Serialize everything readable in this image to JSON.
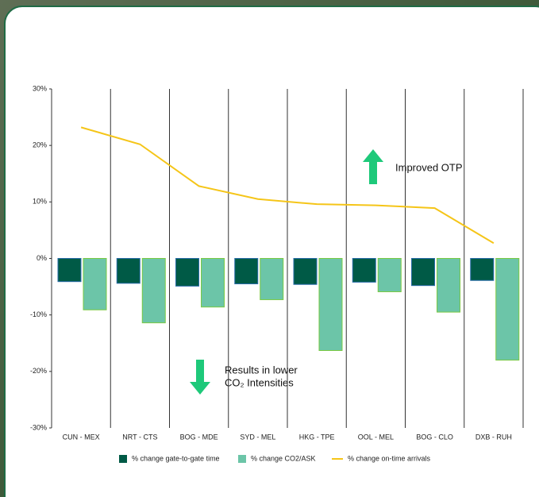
{
  "chart_data": {
    "type": "bar",
    "categories": [
      "CUN - MEX",
      "NRT - CTS",
      "BOG - MDE",
      "SYD - MEL",
      "HKG - TPE",
      "OOL - MEL",
      "BOG - CLO",
      "DXB - RUH"
    ],
    "series": [
      {
        "name": "% change gate-to-gate time",
        "type": "bar",
        "color": "#005a46",
        "values": [
          -4.1,
          -4.4,
          -4.9,
          -4.5,
          -4.6,
          -4.2,
          -4.8,
          -3.9
        ]
      },
      {
        "name": "% change CO2/ASK",
        "type": "bar",
        "color": "#6cc5a8",
        "values": [
          -9.1,
          -11.4,
          -8.6,
          -7.3,
          -16.3,
          -5.9,
          -9.5,
          -18.0
        ]
      },
      {
        "name": "% change on-time arrivals",
        "type": "line",
        "color": "#f5c518",
        "values": [
          23.2,
          20.2,
          12.8,
          10.5,
          9.6,
          9.4,
          8.9,
          2.7
        ]
      }
    ],
    "ylim": [
      -30,
      30
    ],
    "yticks": [
      {
        "value": -30,
        "label": "-30%"
      },
      {
        "value": -20,
        "label": "-20%"
      },
      {
        "value": -10,
        "label": "-10%"
      },
      {
        "value": 0,
        "label": "0%"
      },
      {
        "value": 10,
        "label": "10%"
      },
      {
        "value": 20,
        "label": "20%"
      },
      {
        "value": 30,
        "label": "30%"
      }
    ],
    "grid": false,
    "legend": "bottom",
    "annotations": [
      "Improved OTP",
      "Results in lower",
      "CO₂ Intensities"
    ]
  }
}
